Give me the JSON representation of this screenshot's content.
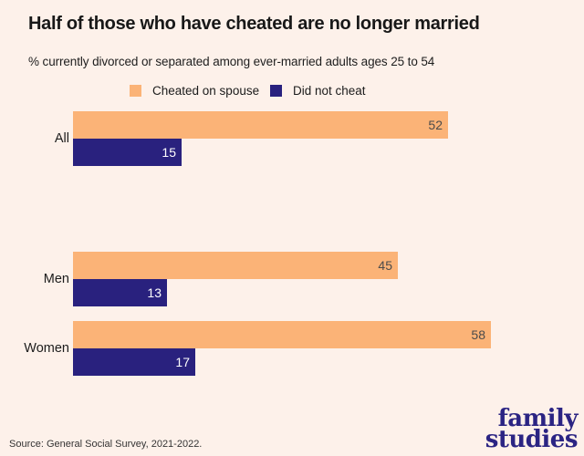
{
  "background_color": "#FDF1EA",
  "header": {
    "title": "Half of those who have cheated are no longer married",
    "subtitle": "% currently divorced or separated among ever-married adults ages 25 to 54"
  },
  "legend": [
    {
      "label": "Cheated on spouse",
      "color": "#FBB377"
    },
    {
      "label": "Did not cheat",
      "color": "#29217E"
    }
  ],
  "chart_data": {
    "type": "bar",
    "orientation": "horizontal",
    "title": "Half of those who have cheated are no longer married",
    "subtitle": "% currently divorced or separated among ever-married adults ages 25 to 54",
    "categories": [
      "All",
      "Men",
      "Women"
    ],
    "series": [
      {
        "name": "Cheated on spouse",
        "color": "#FBB377",
        "values": [
          52,
          45,
          58
        ]
      },
      {
        "name": "Did not cheat",
        "color": "#29217E",
        "values": [
          15,
          13,
          17
        ]
      }
    ],
    "xlim": [
      0,
      60
    ],
    "grid": false,
    "value_labels": "inside-end",
    "legend_position": "top"
  },
  "source": {
    "text": "Source: General Social Survey, 2021-2022."
  },
  "logo": {
    "line1": "family",
    "line2": "studies",
    "color": "#2B2483"
  }
}
